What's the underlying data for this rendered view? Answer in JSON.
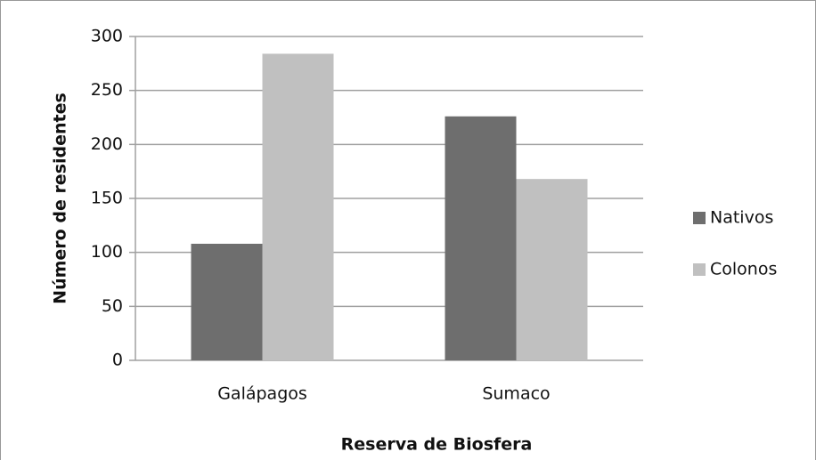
{
  "chart_data": {
    "type": "bar",
    "x_label": "Reserva de Biosfera",
    "y_label": "Número de residentes",
    "categories": [
      "Galápagos",
      "Sumaco"
    ],
    "series": [
      {
        "name": "Nativos",
        "color": "#6e6e6e",
        "values": [
          108,
          226
        ]
      },
      {
        "name": "Colonos",
        "color": "#c0c0c0",
        "values": [
          284,
          168
        ]
      }
    ],
    "ylim": [
      0,
      300
    ],
    "yticks": [
      0,
      50,
      100,
      150,
      200,
      250,
      300
    ],
    "grid": true,
    "legend": "right"
  }
}
